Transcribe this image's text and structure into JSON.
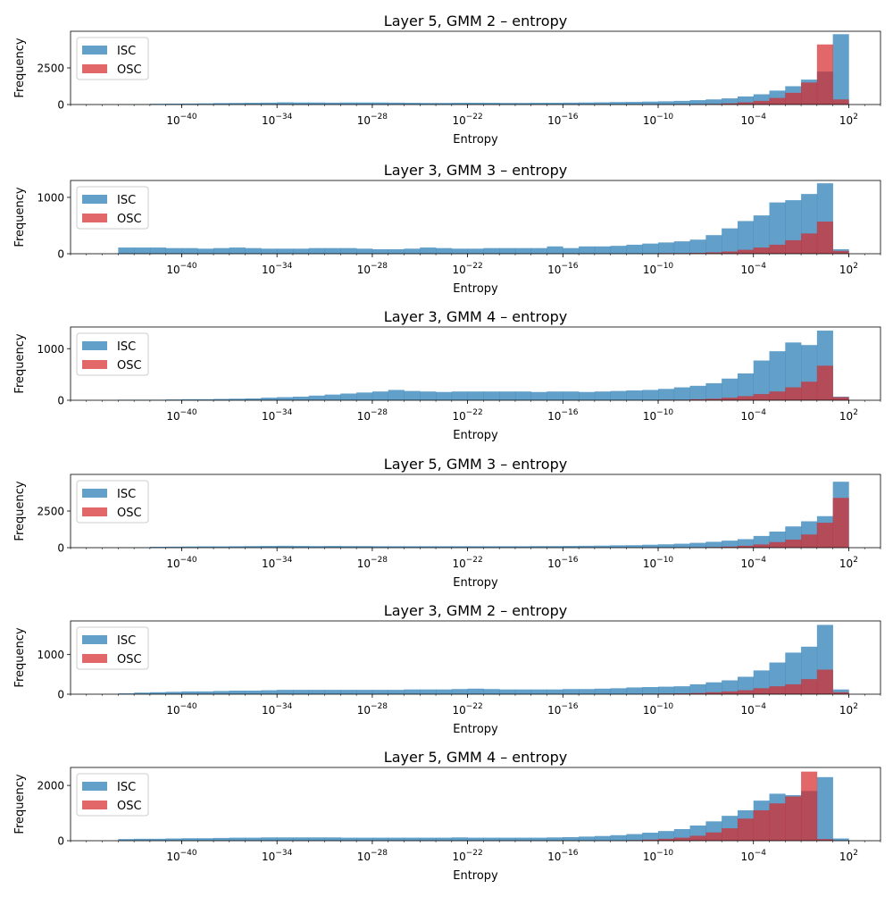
{
  "chart_data": [
    {
      "type": "bar",
      "title": "Layer 5, GMM 2 – entropy",
      "xlabel": "Entropy",
      "ylabel": "Frequency",
      "xscale": "log",
      "xlim_exponent": [
        -47,
        4
      ],
      "ylim": [
        0,
        5000
      ],
      "yticks": [
        0,
        2500
      ],
      "xticks": [
        "10^{-40}",
        "10^{-34}",
        "10^{-28}",
        "10^{-22}",
        "10^{-16}",
        "10^{-10}",
        "10^{-4}",
        "10^{2}"
      ],
      "legend": {
        "position": "upper-left",
        "entries": [
          "ISC",
          "OSC"
        ]
      },
      "bin_edge_exponents": [
        -44,
        -43,
        -42,
        -41,
        -40,
        -39,
        -38,
        -37,
        -36,
        -35,
        -34,
        -33,
        -32,
        -31,
        -30,
        -29,
        -28,
        -27,
        -26,
        -25,
        -24,
        -23,
        -22,
        -21,
        -20,
        -19,
        -18,
        -17,
        -16,
        -15,
        -14,
        -13,
        -12,
        -11,
        -10,
        -9,
        -8,
        -7,
        -6,
        -5,
        -4,
        -3,
        -2,
        -1,
        0,
        1,
        2
      ],
      "series": [
        {
          "name": "ISC",
          "color": "#1f77b4",
          "values": [
            20,
            30,
            50,
            60,
            70,
            80,
            100,
            110,
            120,
            130,
            150,
            140,
            140,
            130,
            140,
            140,
            140,
            130,
            120,
            110,
            110,
            120,
            120,
            120,
            110,
            110,
            120,
            120,
            130,
            140,
            150,
            170,
            180,
            200,
            220,
            250,
            300,
            350,
            420,
            550,
            700,
            950,
            1250,
            1700,
            2250,
            4800,
            600
          ]
        },
        {
          "name": "OSC",
          "color": "#d62728",
          "values": [
            0,
            0,
            0,
            0,
            0,
            0,
            0,
            0,
            0,
            0,
            0,
            0,
            0,
            0,
            0,
            0,
            0,
            0,
            0,
            0,
            0,
            0,
            0,
            0,
            0,
            0,
            0,
            0,
            0,
            0,
            0,
            0,
            0,
            0,
            0,
            10,
            20,
            40,
            80,
            150,
            250,
            450,
            800,
            1500,
            4100,
            350,
            0
          ]
        }
      ]
    },
    {
      "type": "bar",
      "title": "Layer 3, GMM 3 – entropy",
      "xlabel": "Entropy",
      "ylabel": "Frequency",
      "xscale": "log",
      "xlim_exponent": [
        -47,
        4
      ],
      "ylim": [
        0,
        1300
      ],
      "yticks": [
        0,
        1000
      ],
      "xticks": [
        "10^{-40}",
        "10^{-34}",
        "10^{-28}",
        "10^{-22}",
        "10^{-16}",
        "10^{-10}",
        "10^{-4}",
        "10^{2}"
      ],
      "legend": {
        "position": "upper-left",
        "entries": [
          "ISC",
          "OSC"
        ]
      },
      "bin_edge_exponents": [
        -44,
        -43,
        -42,
        -41,
        -40,
        -39,
        -38,
        -37,
        -36,
        -35,
        -34,
        -33,
        -32,
        -31,
        -30,
        -29,
        -28,
        -27,
        -26,
        -25,
        -24,
        -23,
        -22,
        -21,
        -20,
        -19,
        -18,
        -17,
        -16,
        -15,
        -14,
        -13,
        -12,
        -11,
        -10,
        -9,
        -8,
        -7,
        -6,
        -5,
        -4,
        -3,
        -2,
        -1,
        0,
        1,
        2
      ],
      "series": [
        {
          "name": "ISC",
          "color": "#1f77b4",
          "values": [
            110,
            110,
            110,
            100,
            100,
            90,
            100,
            110,
            100,
            90,
            90,
            90,
            100,
            100,
            100,
            90,
            80,
            80,
            90,
            110,
            100,
            90,
            90,
            100,
            100,
            100,
            100,
            130,
            100,
            130,
            130,
            140,
            160,
            180,
            200,
            220,
            250,
            330,
            450,
            580,
            680,
            910,
            950,
            1060,
            1250,
            80,
            0
          ]
        },
        {
          "name": "OSC",
          "color": "#d62728",
          "values": [
            0,
            0,
            0,
            0,
            0,
            0,
            0,
            0,
            0,
            0,
            0,
            0,
            0,
            0,
            0,
            0,
            0,
            0,
            0,
            0,
            0,
            0,
            0,
            0,
            0,
            0,
            0,
            0,
            0,
            0,
            0,
            0,
            0,
            0,
            10,
            10,
            15,
            25,
            40,
            70,
            110,
            160,
            240,
            360,
            570,
            50,
            0
          ]
        }
      ]
    },
    {
      "type": "bar",
      "title": "Layer 3, GMM 4 – entropy",
      "xlabel": "Entropy",
      "ylabel": "Frequency",
      "xscale": "log",
      "xlim_exponent": [
        -47,
        4
      ],
      "ylim": [
        0,
        1420
      ],
      "yticks": [
        0,
        1000
      ],
      "xticks": [
        "10^{-40}",
        "10^{-34}",
        "10^{-28}",
        "10^{-22}",
        "10^{-16}",
        "10^{-10}",
        "10^{-4}",
        "10^{2}"
      ],
      "legend": {
        "position": "upper-left",
        "entries": [
          "ISC",
          "OSC"
        ]
      },
      "bin_edge_exponents": [
        -44,
        -43,
        -42,
        -41,
        -40,
        -39,
        -38,
        -37,
        -36,
        -35,
        -34,
        -33,
        -32,
        -31,
        -30,
        -29,
        -28,
        -27,
        -26,
        -25,
        -24,
        -23,
        -22,
        -21,
        -20,
        -19,
        -18,
        -17,
        -16,
        -15,
        -14,
        -13,
        -12,
        -11,
        -10,
        -9,
        -8,
        -7,
        -6,
        -5,
        -4,
        -3,
        -2,
        -1,
        0,
        1,
        2
      ],
      "series": [
        {
          "name": "ISC",
          "color": "#1f77b4",
          "values": [
            10,
            10,
            10,
            15,
            20,
            20,
            25,
            30,
            35,
            50,
            60,
            70,
            90,
            110,
            130,
            150,
            170,
            200,
            180,
            170,
            160,
            170,
            170,
            170,
            170,
            170,
            160,
            170,
            170,
            160,
            170,
            180,
            190,
            200,
            220,
            250,
            280,
            330,
            420,
            520,
            770,
            950,
            1120,
            1070,
            1350,
            70,
            0
          ]
        },
        {
          "name": "OSC",
          "color": "#d62728",
          "values": [
            0,
            0,
            0,
            0,
            0,
            0,
            0,
            0,
            0,
            0,
            0,
            0,
            0,
            0,
            0,
            0,
            0,
            0,
            0,
            0,
            0,
            0,
            0,
            0,
            0,
            0,
            0,
            0,
            0,
            0,
            0,
            0,
            0,
            0,
            10,
            10,
            20,
            30,
            50,
            80,
            120,
            170,
            250,
            360,
            670,
            60,
            0
          ]
        }
      ]
    },
    {
      "type": "bar",
      "title": "Layer 5, GMM 3 – entropy",
      "xlabel": "Entropy",
      "ylabel": "Frequency",
      "xscale": "log",
      "xlim_exponent": [
        -47,
        4
      ],
      "ylim": [
        0,
        5000
      ],
      "yticks": [
        0,
        2500
      ],
      "xticks": [
        "10^{-40}",
        "10^{-34}",
        "10^{-28}",
        "10^{-22}",
        "10^{-16}",
        "10^{-10}",
        "10^{-4}",
        "10^{2}"
      ],
      "legend": {
        "position": "upper-left",
        "entries": [
          "ISC",
          "OSC"
        ]
      },
      "bin_edge_exponents": [
        -44,
        -43,
        -42,
        -41,
        -40,
        -39,
        -38,
        -37,
        -36,
        -35,
        -34,
        -33,
        -32,
        -31,
        -30,
        -29,
        -28,
        -27,
        -26,
        -25,
        -24,
        -23,
        -22,
        -21,
        -20,
        -19,
        -18,
        -17,
        -16,
        -15,
        -14,
        -13,
        -12,
        -11,
        -10,
        -9,
        -8,
        -7,
        -6,
        -5,
        -4,
        -3,
        -2,
        -1,
        0,
        1,
        2
      ],
      "series": [
        {
          "name": "ISC",
          "color": "#1f77b4",
          "values": [
            20,
            30,
            60,
            70,
            80,
            90,
            90,
            100,
            110,
            120,
            130,
            120,
            110,
            120,
            110,
            110,
            100,
            100,
            100,
            100,
            100,
            100,
            100,
            100,
            100,
            100,
            110,
            110,
            120,
            130,
            140,
            160,
            170,
            200,
            230,
            270,
            330,
            400,
            480,
            580,
            800,
            1100,
            1450,
            1800,
            2150,
            4500,
            350
          ]
        },
        {
          "name": "OSC",
          "color": "#d62728",
          "values": [
            0,
            0,
            0,
            0,
            0,
            0,
            0,
            0,
            0,
            0,
            0,
            0,
            0,
            0,
            0,
            0,
            0,
            0,
            0,
            0,
            0,
            0,
            0,
            0,
            0,
            0,
            0,
            0,
            0,
            0,
            0,
            0,
            0,
            0,
            0,
            10,
            20,
            40,
            70,
            130,
            220,
            380,
            550,
            900,
            1700,
            3400,
            0
          ]
        }
      ]
    },
    {
      "type": "bar",
      "title": "Layer 3, GMM 2 – entropy",
      "xlabel": "Entropy",
      "ylabel": "Frequency",
      "xscale": "log",
      "xlim_exponent": [
        -47,
        4
      ],
      "ylim": [
        0,
        1850
      ],
      "yticks": [
        0,
        1000
      ],
      "xticks": [
        "10^{-40}",
        "10^{-34}",
        "10^{-28}",
        "10^{-22}",
        "10^{-16}",
        "10^{-10}",
        "10^{-4}",
        "10^{2}"
      ],
      "legend": {
        "position": "upper-left",
        "entries": [
          "ISC",
          "OSC"
        ]
      },
      "bin_edge_exponents": [
        -44,
        -43,
        -42,
        -41,
        -40,
        -39,
        -38,
        -37,
        -36,
        -35,
        -34,
        -33,
        -32,
        -31,
        -30,
        -29,
        -28,
        -27,
        -26,
        -25,
        -24,
        -23,
        -22,
        -21,
        -20,
        -19,
        -18,
        -17,
        -16,
        -15,
        -14,
        -13,
        -12,
        -11,
        -10,
        -9,
        -8,
        -7,
        -6,
        -5,
        -4,
        -3,
        -2,
        -1,
        0,
        1,
        2
      ],
      "series": [
        {
          "name": "ISC",
          "color": "#1f77b4",
          "values": [
            20,
            40,
            50,
            60,
            70,
            70,
            80,
            90,
            90,
            100,
            110,
            110,
            110,
            110,
            110,
            110,
            110,
            110,
            120,
            120,
            120,
            130,
            140,
            130,
            120,
            120,
            120,
            120,
            130,
            130,
            140,
            150,
            170,
            180,
            190,
            200,
            250,
            300,
            350,
            440,
            600,
            800,
            1050,
            1200,
            1750,
            120,
            0
          ]
        },
        {
          "name": "OSC",
          "color": "#d62728",
          "values": [
            0,
            0,
            0,
            0,
            0,
            0,
            0,
            0,
            0,
            0,
            0,
            0,
            0,
            0,
            0,
            0,
            0,
            0,
            0,
            0,
            0,
            0,
            0,
            0,
            0,
            0,
            0,
            0,
            0,
            0,
            0,
            0,
            0,
            10,
            15,
            20,
            30,
            50,
            70,
            100,
            150,
            200,
            250,
            380,
            620,
            50,
            0
          ]
        }
      ]
    },
    {
      "type": "bar",
      "title": "Layer 5, GMM 4 – entropy",
      "xlabel": "Entropy",
      "ylabel": "Frequency",
      "xscale": "log",
      "xlim_exponent": [
        -47,
        4
      ],
      "ylim": [
        0,
        2650
      ],
      "yticks": [
        0,
        2000
      ],
      "xticks": [
        "10^{-40}",
        "10^{-34}",
        "10^{-28}",
        "10^{-22}",
        "10^{-16}",
        "10^{-10}",
        "10^{-4}",
        "10^{2}"
      ],
      "legend": {
        "position": "upper-left",
        "entries": [
          "ISC",
          "OSC"
        ]
      },
      "bin_edge_exponents": [
        -44,
        -43,
        -42,
        -41,
        -40,
        -39,
        -38,
        -37,
        -36,
        -35,
        -34,
        -33,
        -32,
        -31,
        -30,
        -29,
        -28,
        -27,
        -26,
        -25,
        -24,
        -23,
        -22,
        -21,
        -20,
        -19,
        -18,
        -17,
        -16,
        -15,
        -14,
        -13,
        -12,
        -11,
        -10,
        -9,
        -8,
        -7,
        -6,
        -5,
        -4,
        -3,
        -2,
        -1,
        0,
        1,
        2
      ],
      "series": [
        {
          "name": "ISC",
          "color": "#1f77b4",
          "values": [
            60,
            70,
            70,
            80,
            90,
            90,
            100,
            110,
            110,
            120,
            120,
            120,
            120,
            120,
            110,
            110,
            110,
            110,
            110,
            110,
            110,
            120,
            110,
            110,
            110,
            110,
            110,
            120,
            130,
            150,
            170,
            200,
            240,
            290,
            350,
            420,
            550,
            700,
            900,
            1100,
            1450,
            1700,
            1650,
            1800,
            2300,
            80,
            0
          ]
        },
        {
          "name": "OSC",
          "color": "#d62728",
          "values": [
            0,
            0,
            0,
            0,
            0,
            0,
            0,
            0,
            0,
            0,
            0,
            0,
            0,
            0,
            0,
            0,
            0,
            0,
            0,
            0,
            0,
            0,
            0,
            0,
            0,
            0,
            0,
            0,
            0,
            0,
            0,
            0,
            20,
            40,
            70,
            110,
            180,
            300,
            450,
            800,
            1100,
            1350,
            1600,
            2500,
            60,
            0,
            0
          ]
        }
      ]
    }
  ]
}
